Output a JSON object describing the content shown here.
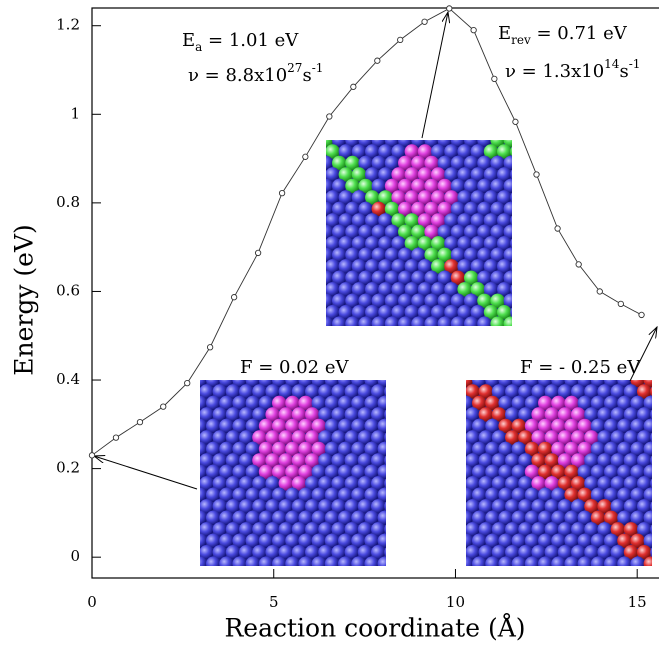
{
  "chart_data": {
    "type": "line",
    "xlabel": "Reaction coordinate (Å)",
    "ylabel": "Energy (eV)",
    "x": [
      0,
      0.66,
      1.32,
      1.96,
      2.62,
      3.25,
      3.91,
      4.57,
      5.23,
      5.87,
      6.53,
      7.19,
      7.85,
      8.48,
      9.15,
      9.83,
      10.5,
      11.07,
      11.65,
      12.23,
      12.81,
      13.39,
      13.97,
      14.55,
      15.12
    ],
    "series": [
      {
        "color": "#333333",
        "values": [
          0.23,
          0.27,
          0.305,
          0.34,
          0.393,
          0.474,
          0.587,
          0.687,
          0.822,
          0.904,
          0.995,
          1.062,
          1.121,
          1.168,
          1.209,
          1.239,
          1.19,
          1.08,
          0.983,
          0.864,
          0.742,
          0.661,
          0.6,
          0.572,
          0.547
        ]
      }
    ],
    "xlim": [
      0,
      15.6
    ],
    "ylim": [
      -0.047,
      1.24
    ],
    "xticks": [
      0,
      5,
      10,
      15
    ],
    "yticks": [
      0,
      0.2,
      0.4,
      0.6,
      0.8,
      1,
      1.2
    ],
    "annotations": [
      [
        "E",
        "a",
        " = 1.01 eV"
      ],
      [
        "ν = 8.8x10",
        "27",
        "s",
        "-1"
      ],
      [
        "E",
        "rev",
        " = 0.71 eV"
      ],
      [
        "ν = 1.3x10",
        "14",
        "s",
        "-1"
      ],
      [
        "F = 0.02 eV"
      ],
      [
        "F = - 0.25 eV"
      ]
    ]
  }
}
